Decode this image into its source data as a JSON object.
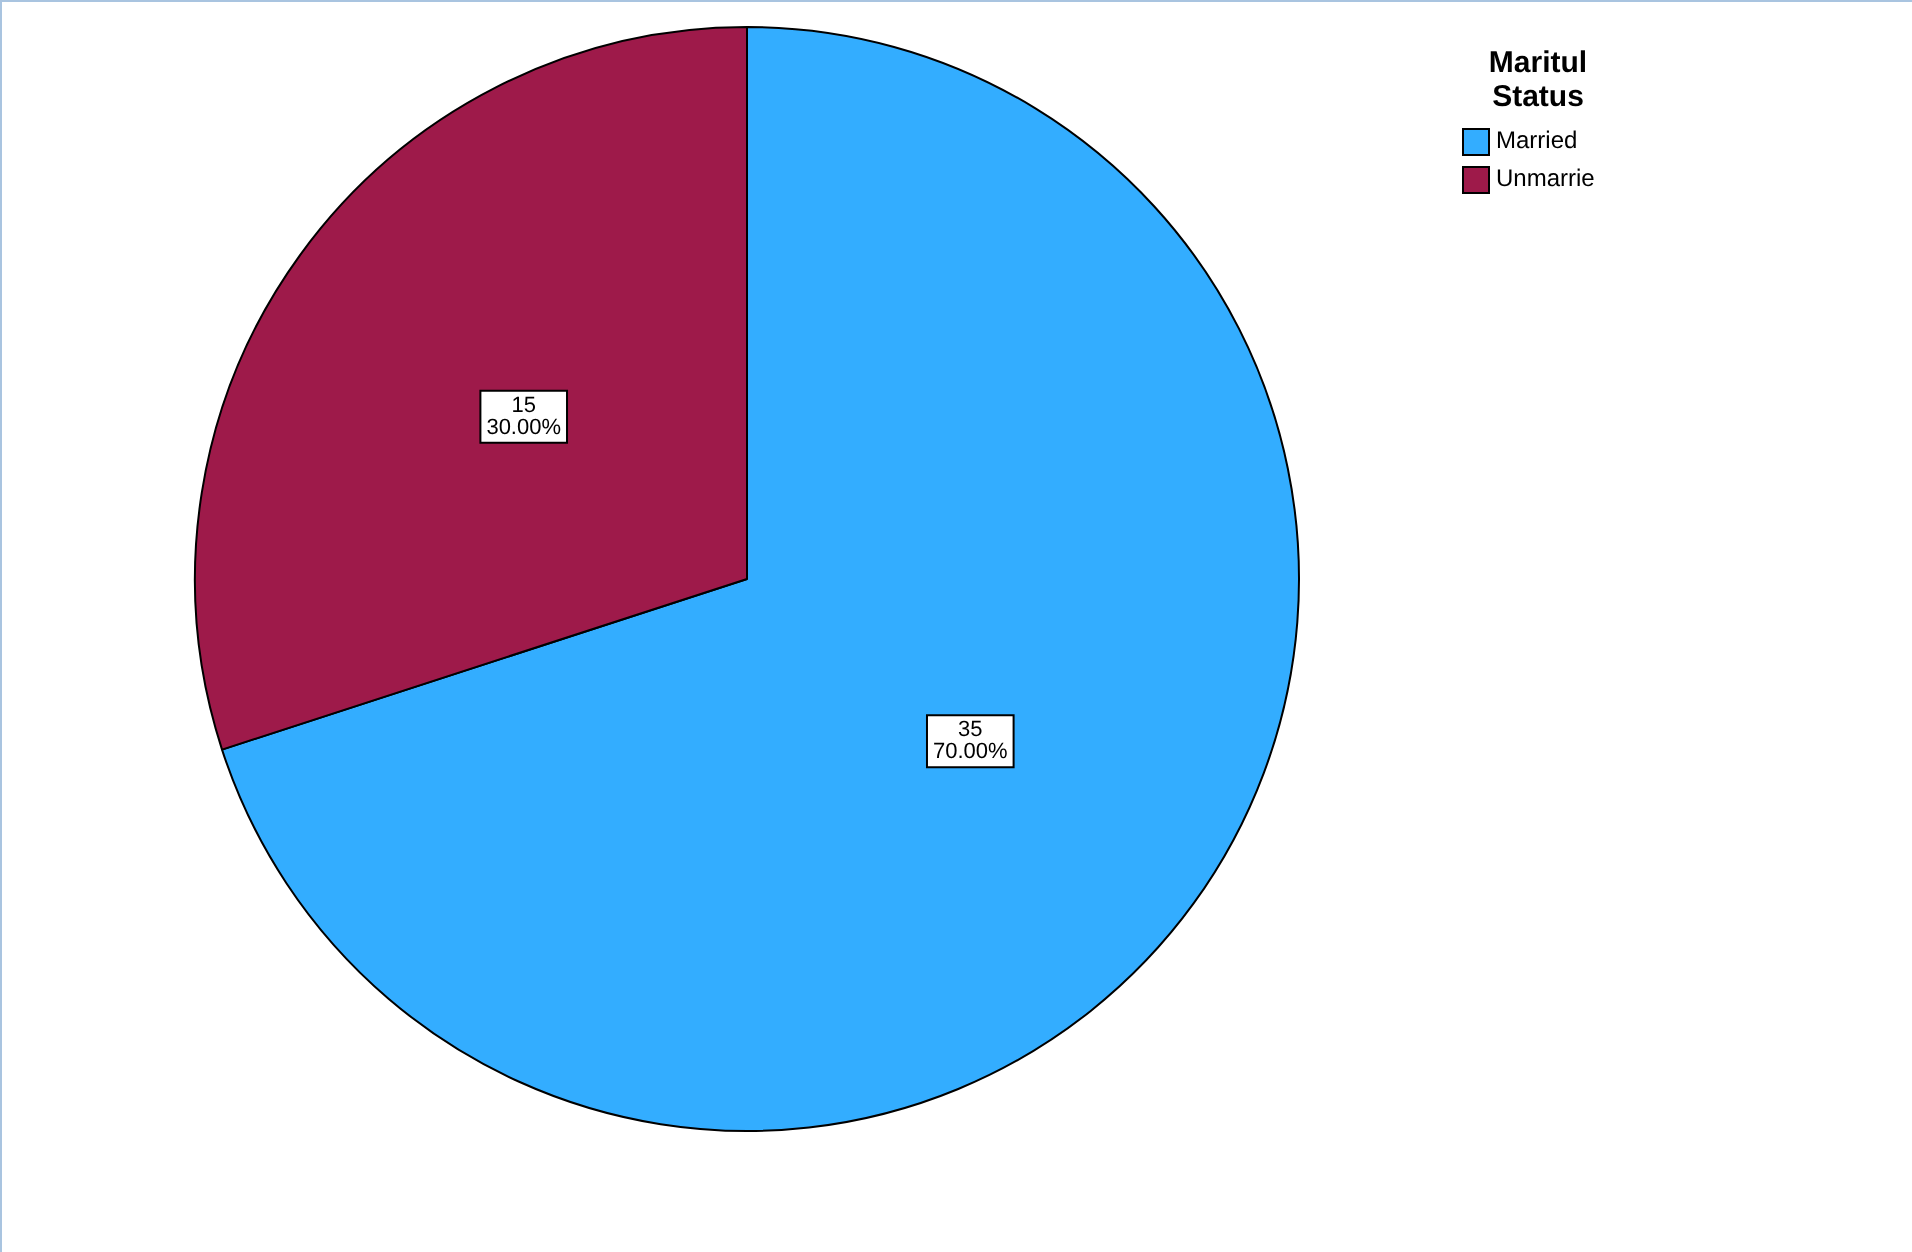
{
  "chart_data": {
    "type": "pie",
    "legend_title": "Maritul Status",
    "legend": "top right",
    "categories": [
      "Married",
      "Unmarrie"
    ],
    "values": [
      35,
      15
    ],
    "colors": [
      "#33adff",
      "#9e1a4a"
    ],
    "value_labels": [
      "35\n70.00%",
      "15\n30.00%"
    ]
  }
}
